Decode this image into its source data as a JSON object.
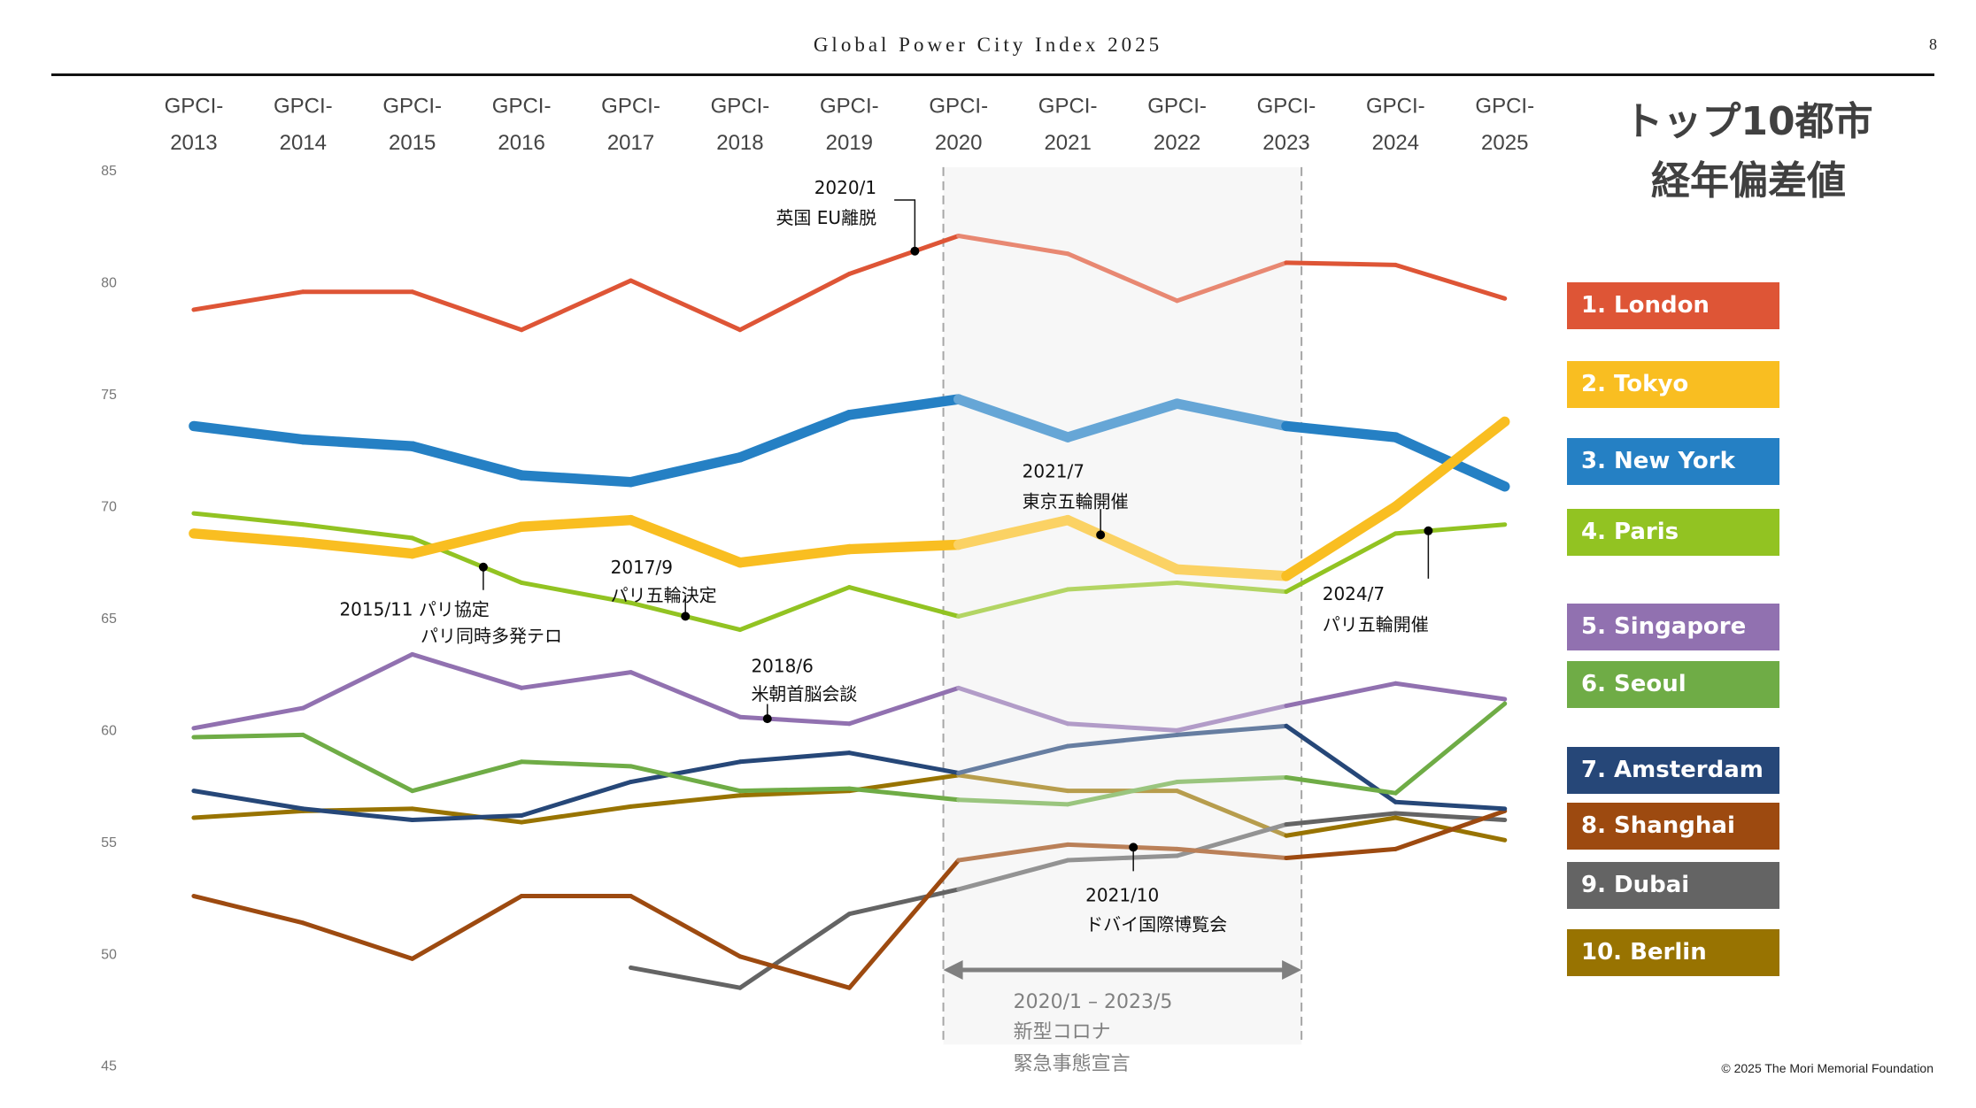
{
  "header": {
    "title": "Global Power City Index 2025",
    "page_number": "8"
  },
  "side_title": {
    "line1": "トップ10都市",
    "line2": "経年偏差値"
  },
  "copyright": "© 2025 The Mori Memorial Foundation",
  "chart_data": {
    "type": "line",
    "title": "トップ10都市 経年偏差値",
    "xlabel": "",
    "ylabel": "",
    "x": [
      "GPCI-2013",
      "GPCI-2014",
      "GPCI-2015",
      "GPCI-2016",
      "GPCI-2017",
      "GPCI-2018",
      "GPCI-2019",
      "GPCI-2020",
      "GPCI-2021",
      "GPCI-2022",
      "GPCI-2023",
      "GPCI-2024",
      "GPCI-2025"
    ],
    "x_label_parts": [
      [
        "GPCI-",
        "2013"
      ],
      [
        "GPCI-",
        "2014"
      ],
      [
        "GPCI-",
        "2015"
      ],
      [
        "GPCI-",
        "2016"
      ],
      [
        "GPCI-",
        "2017"
      ],
      [
        "GPCI-",
        "2018"
      ],
      [
        "GPCI-",
        "2019"
      ],
      [
        "GPCI-",
        "2020"
      ],
      [
        "GPCI-",
        "2021"
      ],
      [
        "GPCI-",
        "2022"
      ],
      [
        "GPCI-",
        "2023"
      ],
      [
        "GPCI-",
        "2024"
      ],
      [
        "GPCI-",
        "2025"
      ]
    ],
    "ylim": [
      45,
      85
    ],
    "yticks": [
      85,
      80,
      75,
      70,
      65,
      60,
      55,
      50,
      45
    ],
    "grid": false,
    "legend_position": "right",
    "series": [
      {
        "name": "1. London",
        "color": "#DE5536",
        "weight": "normal",
        "values": [
          78.8,
          79.6,
          79.6,
          77.9,
          80.1,
          77.9,
          80.4,
          82.1,
          81.3,
          79.2,
          80.9,
          80.8,
          79.3
        ]
      },
      {
        "name": "2. Tokyo",
        "color": "#F9BE21",
        "weight": "bold",
        "values": [
          68.8,
          68.4,
          67.9,
          69.1,
          69.4,
          67.5,
          68.1,
          68.3,
          69.4,
          67.2,
          66.9,
          70.0,
          73.8
        ]
      },
      {
        "name": "3. New York",
        "color": "#2580C4",
        "weight": "bold",
        "values": [
          73.6,
          73.0,
          72.7,
          71.4,
          71.1,
          72.2,
          74.1,
          74.8,
          73.1,
          74.6,
          73.6,
          73.1,
          70.9
        ]
      },
      {
        "name": "4. Paris",
        "color": "#92C322",
        "weight": "normal",
        "values": [
          69.7,
          69.2,
          68.6,
          66.6,
          65.7,
          64.5,
          66.4,
          65.1,
          66.3,
          66.6,
          66.2,
          68.8,
          69.2
        ]
      },
      {
        "name": "5. Singapore",
        "color": "#9171B0",
        "weight": "normal",
        "values": [
          60.1,
          61.0,
          63.4,
          61.9,
          62.6,
          60.6,
          60.3,
          61.9,
          60.3,
          60.0,
          61.1,
          62.1,
          61.4
        ]
      },
      {
        "name": "6. Seoul",
        "color": "#6FAC46",
        "weight": "normal",
        "values": [
          59.7,
          59.8,
          57.3,
          58.6,
          58.4,
          57.3,
          57.4,
          56.9,
          56.7,
          57.7,
          57.9,
          57.2,
          61.2
        ]
      },
      {
        "name": "7. Amsterdam",
        "color": "#264778",
        "weight": "normal",
        "values": [
          57.3,
          56.5,
          56.0,
          56.2,
          57.7,
          58.6,
          59.0,
          58.1,
          59.3,
          59.8,
          60.2,
          56.8,
          56.5
        ]
      },
      {
        "name": "8. Shanghai",
        "color": "#9D4A10",
        "weight": "normal",
        "values": [
          52.6,
          51.4,
          49.8,
          52.6,
          52.6,
          49.9,
          48.5,
          54.2,
          54.9,
          54.7,
          54.3,
          54.7,
          56.4
        ]
      },
      {
        "name": "9. Dubai",
        "color": "#646464",
        "weight": "normal",
        "values": [
          null,
          null,
          null,
          null,
          49.4,
          48.5,
          51.8,
          52.9,
          54.2,
          54.4,
          55.8,
          56.3,
          56.0
        ]
      },
      {
        "name": "10. Berlin",
        "color": "#987301",
        "weight": "normal",
        "values": [
          56.1,
          56.4,
          56.5,
          55.9,
          56.6,
          57.1,
          57.3,
          58.0,
          57.3,
          57.3,
          55.3,
          56.1,
          55.1
        ]
      }
    ],
    "highlight_period": {
      "from_index": 7,
      "to_index": 10,
      "label_dates": "2020/1 – 2023/5",
      "label_line2": "新型コロナ",
      "label_line3": "緊急事態宣言"
    },
    "annotations": [
      {
        "series": "1. London",
        "at": 6.6,
        "text1": "2020/1",
        "text2": "英国 EU離脱"
      },
      {
        "series": "4. Paris",
        "at": 2.65,
        "text1": "2015/11 パリ協定",
        "text2": "パリ同時多発テロ"
      },
      {
        "series": "4. Paris",
        "at": 4.5,
        "text1": "2017/9",
        "text2": "パリ五輪決定"
      },
      {
        "series": "5. Singapore",
        "at": 5.25,
        "text1": "2018/6",
        "text2": "米朝首脳会談"
      },
      {
        "series": "2. Tokyo",
        "at": 8.3,
        "text1": "2021/7",
        "text2": "東京五輪開催"
      },
      {
        "series": "8. Shanghai",
        "at": 8.6,
        "text1": "2021/10",
        "text2": "ドバイ国際博覧会"
      },
      {
        "series": "4. Paris",
        "at": 11.3,
        "text1": "2024/7",
        "text2": "パリ五輪開催"
      }
    ]
  }
}
